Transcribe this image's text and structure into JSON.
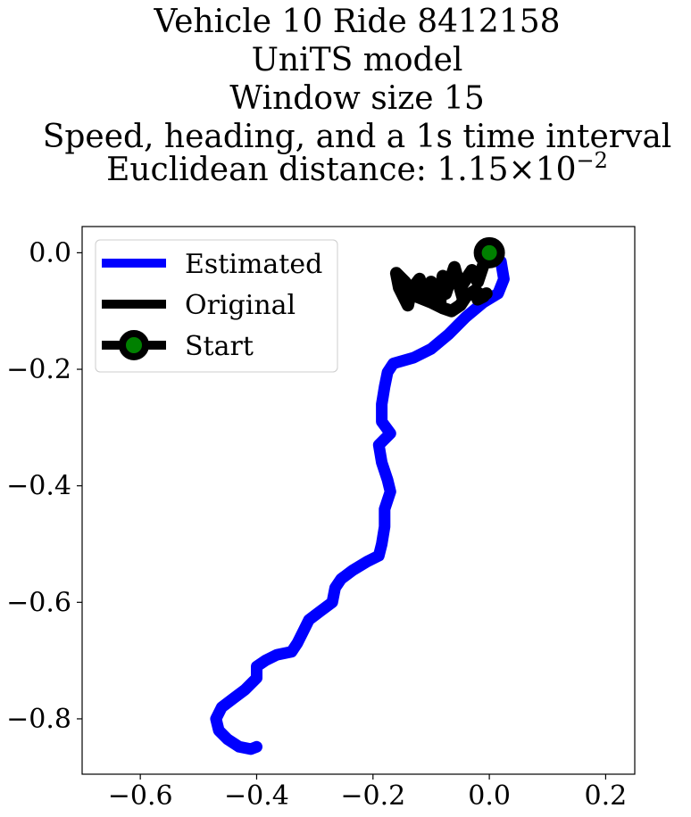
{
  "chart_data": {
    "type": "line",
    "title_lines": [
      "Vehicle 10 Ride 8412158",
      "UniTS model",
      "Window size 15",
      "Speed, heading, and a 1s time interval"
    ],
    "title_metric_label": "Euclidean distance: ",
    "title_metric_mantissa": "1.15",
    "title_metric_times": "×",
    "title_metric_base": "10",
    "title_metric_exponent": "−2",
    "xlim": [
      -0.7,
      0.25
    ],
    "ylim": [
      -0.895,
      0.045
    ],
    "xticks": [
      -0.6,
      -0.4,
      -0.2,
      0.0,
      0.2
    ],
    "xtick_labels": [
      "−0.6",
      "−0.4",
      "−0.2",
      "0.0",
      "0.2"
    ],
    "yticks": [
      0.0,
      -0.2,
      -0.4,
      -0.6,
      -0.8
    ],
    "ytick_labels": [
      "0.0",
      "−0.2",
      "−0.4",
      "−0.6",
      "−0.8"
    ],
    "legend_position": "upper-left",
    "series": [
      {
        "name": "Estimated",
        "color": "#0000ff",
        "points": [
          [
            0.0,
            0.0
          ],
          [
            0.02,
            -0.015
          ],
          [
            0.025,
            -0.045
          ],
          [
            0.015,
            -0.07
          ],
          [
            -0.01,
            -0.085
          ],
          [
            -0.04,
            -0.11
          ],
          [
            -0.07,
            -0.14
          ],
          [
            -0.1,
            -0.165
          ],
          [
            -0.13,
            -0.18
          ],
          [
            -0.165,
            -0.19
          ],
          [
            -0.175,
            -0.205
          ],
          [
            -0.18,
            -0.23
          ],
          [
            -0.185,
            -0.26
          ],
          [
            -0.185,
            -0.29
          ],
          [
            -0.17,
            -0.31
          ],
          [
            -0.19,
            -0.33
          ],
          [
            -0.185,
            -0.36
          ],
          [
            -0.175,
            -0.39
          ],
          [
            -0.17,
            -0.41
          ],
          [
            -0.18,
            -0.44
          ],
          [
            -0.18,
            -0.47
          ],
          [
            -0.185,
            -0.5
          ],
          [
            -0.19,
            -0.52
          ],
          [
            -0.21,
            -0.53
          ],
          [
            -0.235,
            -0.545
          ],
          [
            -0.255,
            -0.56
          ],
          [
            -0.265,
            -0.575
          ],
          [
            -0.27,
            -0.6
          ],
          [
            -0.29,
            -0.615
          ],
          [
            -0.31,
            -0.63
          ],
          [
            -0.32,
            -0.65
          ],
          [
            -0.33,
            -0.67
          ],
          [
            -0.34,
            -0.685
          ],
          [
            -0.365,
            -0.69
          ],
          [
            -0.385,
            -0.7
          ],
          [
            -0.4,
            -0.71
          ],
          [
            -0.4,
            -0.73
          ],
          [
            -0.42,
            -0.75
          ],
          [
            -0.44,
            -0.765
          ],
          [
            -0.46,
            -0.78
          ],
          [
            -0.47,
            -0.8
          ],
          [
            -0.465,
            -0.82
          ],
          [
            -0.45,
            -0.835
          ],
          [
            -0.43,
            -0.848
          ],
          [
            -0.41,
            -0.852
          ],
          [
            -0.4,
            -0.848
          ]
        ]
      },
      {
        "name": "Original",
        "color": "#000000",
        "points": [
          [
            0.0,
            0.0
          ],
          [
            -0.01,
            -0.02
          ],
          [
            -0.02,
            -0.05
          ],
          [
            -0.03,
            -0.03
          ],
          [
            -0.05,
            -0.06
          ],
          [
            -0.045,
            -0.08
          ],
          [
            -0.06,
            -0.025
          ],
          [
            -0.075,
            -0.07
          ],
          [
            -0.08,
            -0.04
          ],
          [
            -0.085,
            -0.09
          ],
          [
            -0.1,
            -0.05
          ],
          [
            -0.11,
            -0.08
          ],
          [
            -0.12,
            -0.045
          ],
          [
            -0.135,
            -0.065
          ],
          [
            -0.14,
            -0.09
          ],
          [
            -0.155,
            -0.06
          ],
          [
            -0.16,
            -0.035
          ],
          [
            -0.145,
            -0.05
          ],
          [
            -0.125,
            -0.075
          ],
          [
            -0.1,
            -0.085
          ],
          [
            -0.08,
            -0.095
          ],
          [
            -0.065,
            -0.1
          ],
          [
            -0.05,
            -0.09
          ],
          [
            -0.04,
            -0.075
          ],
          [
            -0.025,
            -0.065
          ],
          [
            -0.01,
            -0.075
          ],
          [
            -0.02,
            -0.08
          ],
          [
            -0.005,
            -0.07
          ]
        ]
      },
      {
        "name": "Start",
        "color": "#000000",
        "marker_face": "#008000",
        "points": [
          [
            0.0,
            0.0
          ]
        ]
      }
    ]
  }
}
